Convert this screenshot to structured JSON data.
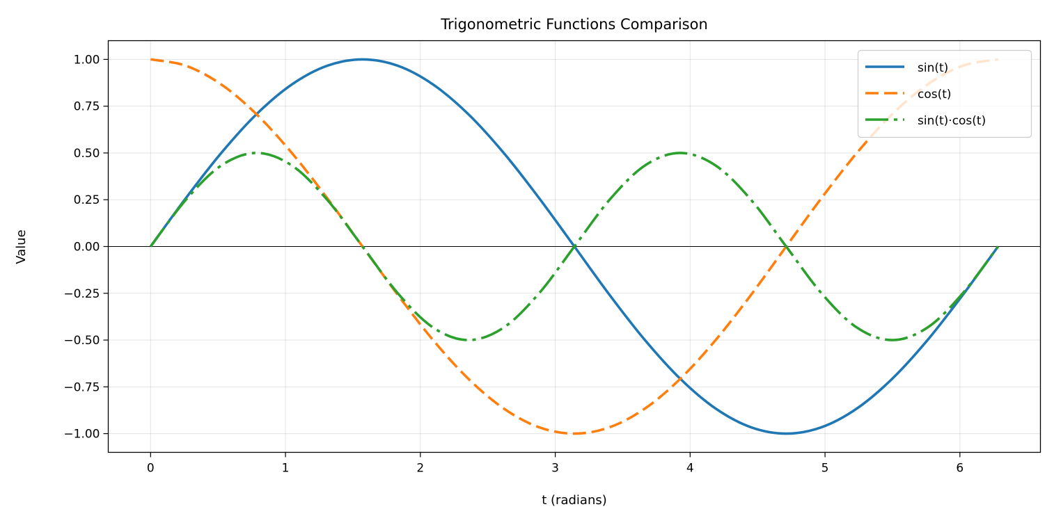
{
  "chart_data": {
    "type": "line",
    "title": "Trigonometric Functions Comparison",
    "xlabel": "t (radians)",
    "ylabel": "Value",
    "xlim": [
      -0.314,
      6.597
    ],
    "ylim": [
      -1.1,
      1.1
    ],
    "xticks": [
      0,
      1,
      2,
      3,
      4,
      5,
      6
    ],
    "xtick_labels": [
      "0",
      "1",
      "2",
      "3",
      "4",
      "5",
      "6"
    ],
    "yticks": [
      1.0,
      0.75,
      0.5,
      0.25,
      0.0,
      -0.25,
      -0.5,
      -0.75,
      -1.0
    ],
    "ytick_labels": [
      "1.00",
      "0.75",
      "0.50",
      "0.25",
      "0.00",
      "−0.25",
      "−0.50",
      "−0.75",
      "−1.00"
    ],
    "grid": true,
    "zero_line": true,
    "legend_placement": "top-right",
    "x": [
      0,
      0.262,
      0.524,
      0.785,
      1.047,
      1.309,
      1.571,
      1.833,
      2.094,
      2.356,
      2.618,
      2.88,
      3.142,
      3.403,
      3.665,
      3.927,
      4.189,
      4.451,
      4.712,
      4.974,
      5.236,
      5.498,
      5.76,
      6.021,
      6.283
    ],
    "series": [
      {
        "name": "sin(t)",
        "color": "#1f77b4",
        "style": "solid",
        "values": [
          0,
          0.259,
          0.5,
          0.707,
          0.866,
          0.966,
          1,
          0.966,
          0.866,
          0.707,
          0.5,
          0.259,
          0,
          -0.259,
          -0.5,
          -0.707,
          -0.866,
          -0.966,
          -1,
          -0.966,
          -0.866,
          -0.707,
          -0.5,
          -0.259,
          0
        ]
      },
      {
        "name": "cos(t)",
        "color": "#ff7f0e",
        "style": "dashed",
        "values": [
          1,
          0.966,
          0.866,
          0.707,
          0.5,
          0.259,
          0,
          -0.259,
          -0.5,
          -0.707,
          -0.866,
          -0.966,
          -1,
          -0.966,
          -0.866,
          -0.707,
          -0.5,
          -0.259,
          0,
          0.259,
          0.5,
          0.707,
          0.866,
          0.966,
          1
        ]
      },
      {
        "name": "sin(t)·cos(t)",
        "color": "#2ca02c",
        "style": "dashdot",
        "values": [
          0,
          0.25,
          0.433,
          0.5,
          0.433,
          0.25,
          0,
          -0.25,
          -0.433,
          -0.5,
          -0.433,
          -0.25,
          0,
          0.25,
          0.433,
          0.5,
          0.433,
          0.25,
          0,
          -0.25,
          -0.433,
          -0.5,
          -0.433,
          -0.25,
          0
        ]
      }
    ]
  }
}
